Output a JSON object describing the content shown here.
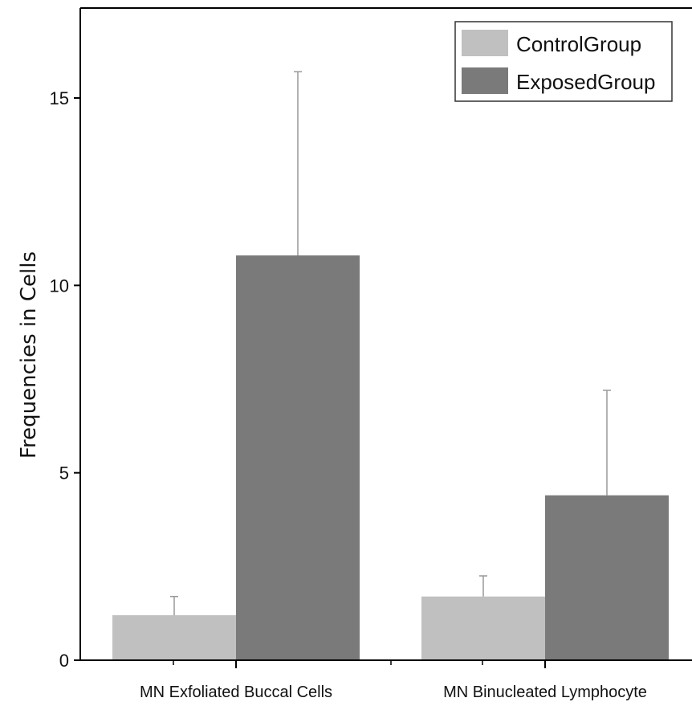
{
  "chart_data": {
    "type": "bar",
    "title": "",
    "xlabel": "",
    "ylabel": "Frequencies in Cells",
    "categories": [
      "MN Exfoliated Buccal Cells",
      "MN Binucleated Lymphocyte"
    ],
    "series": [
      {
        "name": "ControlGroup",
        "values": [
          1.2,
          1.7
        ],
        "errors": [
          0.5,
          0.55
        ],
        "color": "#c0c0c0"
      },
      {
        "name": "ExposedGroup",
        "values": [
          10.8,
          4.4
        ],
        "errors": [
          4.9,
          2.8
        ],
        "color": "#7a7a7a"
      }
    ],
    "ylim": [
      0,
      17.4
    ],
    "yticks": [
      0,
      5,
      10,
      15
    ],
    "grid": false,
    "legend": "top-right"
  }
}
